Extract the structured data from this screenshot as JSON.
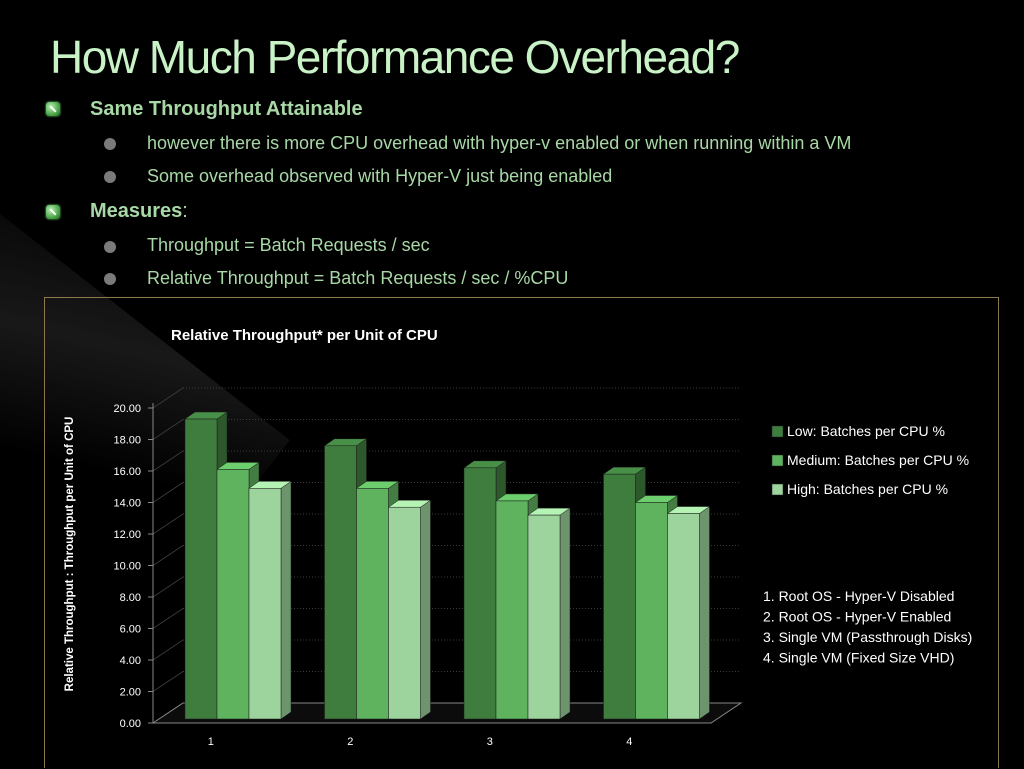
{
  "slide": {
    "title": "How Much Performance Overhead?",
    "bullets": [
      {
        "text": "Same Throughput Attainable",
        "sub": [
          "however there is more CPU overhead with hyper-v enabled or when running within a VM",
          "Some overhead observed with Hyper-V just being enabled"
        ]
      },
      {
        "text": "Measures",
        "suffix": ":",
        "sub": [
          "Throughput =  Batch Requests / sec",
          "Relative Throughput = Batch Requests / sec / %CPU"
        ]
      }
    ]
  },
  "chart_data": {
    "type": "bar",
    "style": "3d-clustered-column",
    "title": "Relative Throughput* per Unit of CPU",
    "ylabel": "Relative Throughput :  Throughput per Unit of CPU",
    "xlabel": "",
    "categories": [
      "1",
      "2",
      "3",
      "4"
    ],
    "series": [
      {
        "name": "Low: Batches per CPU %",
        "values": [
          19.3,
          17.6,
          16.2,
          15.8
        ],
        "color": "#3f7d3f"
      },
      {
        "name": "Medium: Batches per CPU %",
        "values": [
          16.1,
          14.9,
          14.1,
          14.0
        ],
        "color": "#5fb35f"
      },
      {
        "name": "High: Batches per CPU %",
        "values": [
          14.9,
          13.7,
          13.2,
          13.3
        ],
        "color": "#9dd39d"
      }
    ],
    "ylim": [
      0,
      20
    ],
    "yticks": [
      "0.00",
      "2.00",
      "4.00",
      "6.00",
      "8.00",
      "10.00",
      "12.00",
      "14.00",
      "16.00",
      "18.00",
      "20.00"
    ],
    "grid": true,
    "legend_position": "right",
    "notes": [
      "1. Root OS - Hyper-V Disabled",
      "2. Root OS - Hyper-V Enabled",
      "3. Single VM (Passthrough Disks)",
      "4. Single VM (Fixed Size VHD)"
    ]
  }
}
